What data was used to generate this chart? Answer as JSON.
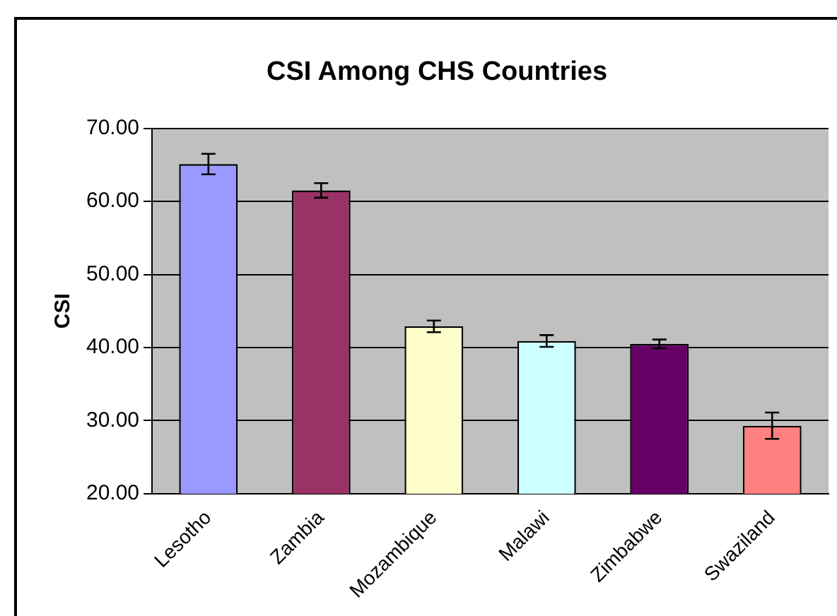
{
  "chart_data": {
    "type": "bar",
    "title": "CSI Among CHS Countries",
    "ylabel": "CSI",
    "categories": [
      "Lesotho",
      "Zambia",
      "Mozambique",
      "Malawi",
      "Zimbabwe",
      "Swaziland"
    ],
    "values": [
      65.1,
      61.5,
      42.9,
      40.9,
      40.5,
      29.3
    ],
    "errors": [
      1.4,
      1.0,
      0.8,
      0.8,
      0.6,
      1.8
    ],
    "colors": [
      "#9999ff",
      "#993366",
      "#ffffcc",
      "#ccffff",
      "#660066",
      "#ff8080"
    ],
    "ylim": [
      20,
      70
    ],
    "yticks": [
      {
        "value": 20,
        "label": "20.00"
      },
      {
        "value": 30,
        "label": "30.00"
      },
      {
        "value": 40,
        "label": "40.00"
      },
      {
        "value": 50,
        "label": "50.00"
      },
      {
        "value": 60,
        "label": "60.00"
      },
      {
        "value": 70,
        "label": "70.00"
      }
    ],
    "grid": "y",
    "legend": false
  }
}
